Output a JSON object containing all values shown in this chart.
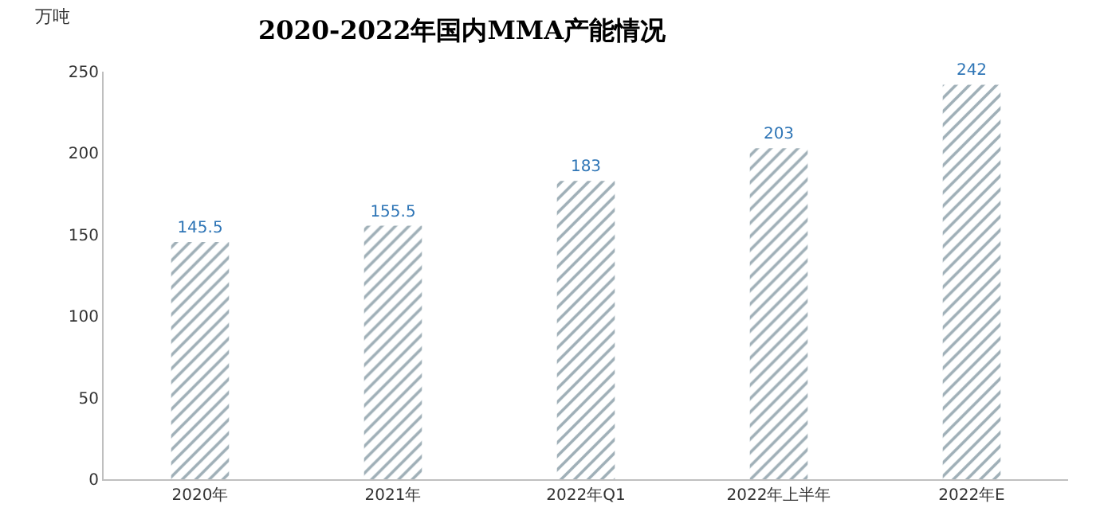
{
  "chart_data": {
    "type": "bar",
    "title": "2020-2022年国内MMA产能情况",
    "ylabel": "万吨",
    "categories": [
      "2020年",
      "2021年",
      "2022年Q1",
      "2022年上半年",
      "2022年E"
    ],
    "values": [
      145.5,
      155.5,
      183,
      203,
      242
    ],
    "color": "#3f5f6f",
    "ylim": [
      0,
      250
    ],
    "yticks": [
      0,
      50,
      100,
      150,
      200,
      250
    ],
    "data_labels": true
  }
}
